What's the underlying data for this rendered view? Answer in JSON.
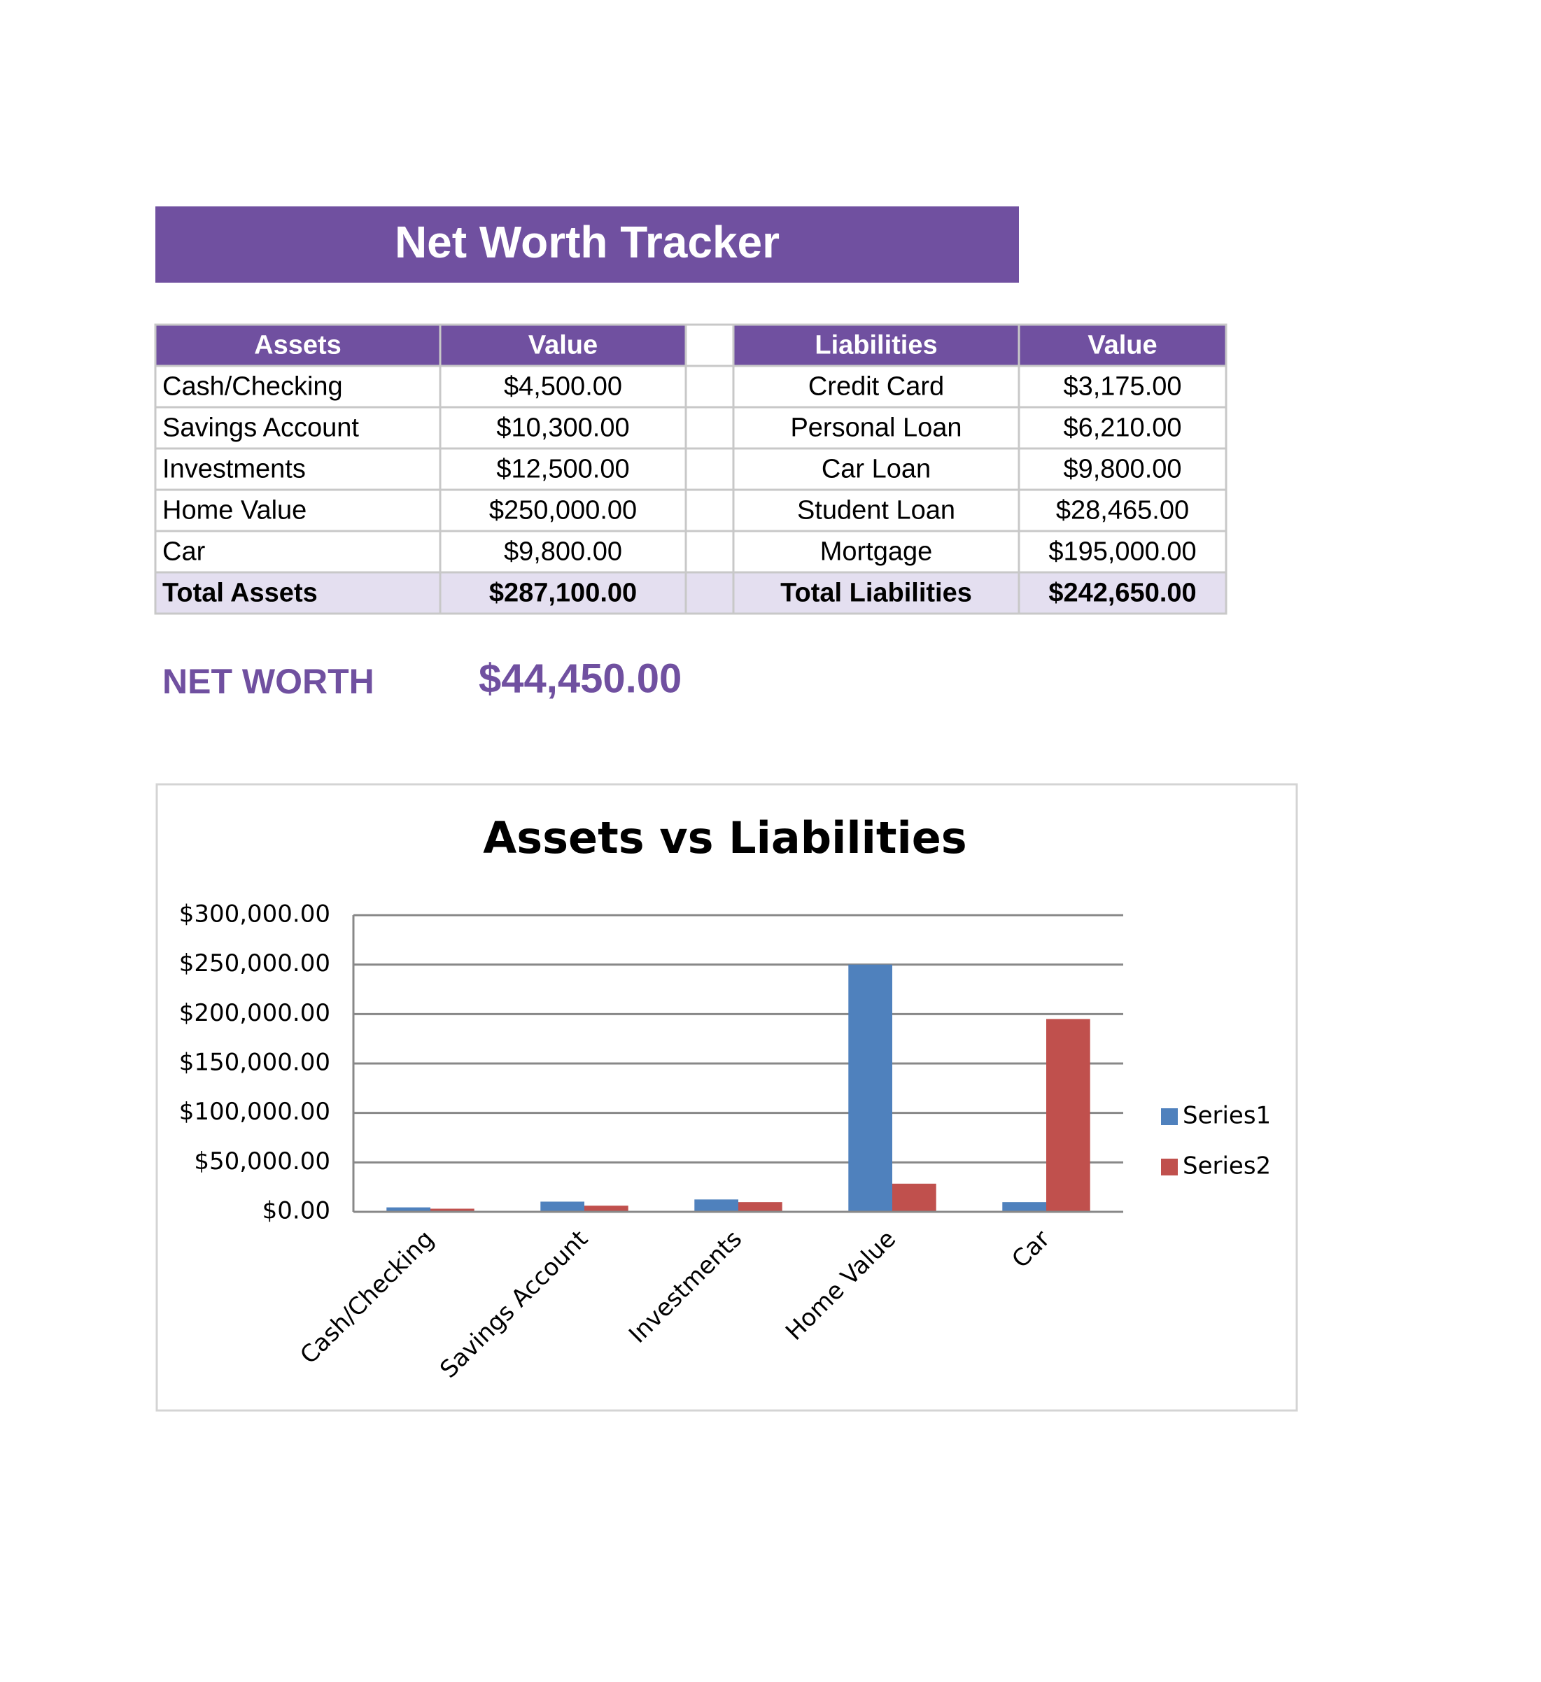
{
  "header": {
    "title": "Net Worth Tracker"
  },
  "assets_table": {
    "columns": [
      "Assets",
      "Value"
    ],
    "rows": [
      [
        "Cash/Checking",
        "$4,500.00"
      ],
      [
        "Savings Account",
        "$10,300.00"
      ],
      [
        "Investments",
        "$12,500.00"
      ],
      [
        "Home Value",
        "$250,000.00"
      ],
      [
        "Car",
        "$9,800.00"
      ]
    ],
    "total": [
      "Total Assets",
      "$287,100.00"
    ]
  },
  "liabilities_table": {
    "columns": [
      "Liabilities",
      "Value"
    ],
    "rows": [
      [
        "Credit Card",
        "$3,175.00"
      ],
      [
        "Personal Loan",
        "$6,210.00"
      ],
      [
        "Car Loan",
        "$9,800.00"
      ],
      [
        "Student Loan",
        "$28,465.00"
      ],
      [
        "Mortgage",
        "$195,000.00"
      ]
    ],
    "total": [
      "Total Liabilities",
      "$242,650.00"
    ]
  },
  "net_worth": {
    "label": "NET WORTH",
    "value": "$44,450.00"
  },
  "chart_data": {
    "type": "bar",
    "title": "Assets vs Liabilities",
    "categories": [
      "Cash/Checking",
      "Savings Account",
      "Investments",
      "Home Value",
      "Car"
    ],
    "series": [
      {
        "name": "Series1",
        "color": "#4f81bd",
        "values": [
          4500,
          10300,
          12500,
          250000,
          9800
        ]
      },
      {
        "name": "Series2",
        "color": "#c0504d",
        "values": [
          3175,
          6210,
          9800,
          28465,
          195000
        ]
      }
    ],
    "ylim": [
      0,
      300000
    ],
    "yticks": [
      {
        "value": 0,
        "label": "$0.00"
      },
      {
        "value": 50000,
        "label": "$50,000.00"
      },
      {
        "value": 100000,
        "label": "$100,000.00"
      },
      {
        "value": 150000,
        "label": "$150,000.00"
      },
      {
        "value": 200000,
        "label": "$200,000.00"
      },
      {
        "value": 250000,
        "label": "$250,000.00"
      },
      {
        "value": 300000,
        "label": "$300,000.00"
      }
    ],
    "grid": true,
    "legend": "right"
  }
}
